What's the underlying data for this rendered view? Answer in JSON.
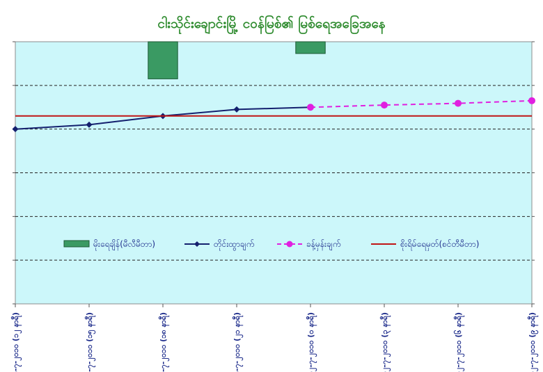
{
  "chart_data": {
    "title": "ငါးသိုင်းချောင်းမြို့ ငဝန်မြစ်၏ မြစ်ရေအခြေအနေ",
    "x_labels": [
      "၁၁-၇-၂၀၁၀ (၁၂ နာရီ)",
      "၁၁-၇-၂၀၁၀ (၁၅ နာရီ)",
      "၁၁-၇-၂၀၁၀ (၁၈ နာရီ)",
      "၁၁-၇-၂၀၁၀ (၂၁ နာရီ)",
      "၁၂-၇-၂၀၁၀ (၀ နာရီ)",
      "၁၂-၇-၂၀၁၀ (၃ နာရီ)",
      "၁၂-၇-၂၀၁၀ (၆ နာရီ)",
      "၁၂-၇-၂၀၁၀ (၉ နာရီ)"
    ],
    "y_range_relative": [
      0,
      6
    ],
    "grid": "horizontal dashed",
    "legend_position": "center",
    "series": [
      {
        "name": "မိုးရေချိန်(မီလီမီတာ)",
        "type": "bar",
        "axis": "secondary-inverted",
        "color": "#3a9a63",
        "values": [
          null,
          null,
          0.85,
          null,
          0.27,
          null,
          null,
          null
        ]
      },
      {
        "name": "တိုင်းထွာချက်",
        "type": "line",
        "color": "#14206e",
        "values": [
          4.0,
          4.1,
          4.3,
          4.45,
          4.5,
          null,
          null,
          null
        ]
      },
      {
        "name": "ခန့်မှန်းချက်",
        "type": "line-dashed",
        "color": "#e020e0",
        "values": [
          null,
          null,
          null,
          null,
          4.5,
          4.55,
          4.59,
          4.65
        ]
      },
      {
        "name": "စိုးရိမ်ရေမှတ်(စင်တီမီတာ)",
        "type": "line",
        "color": "#c01515",
        "values": [
          4.3,
          4.3,
          4.3,
          4.3,
          4.3,
          4.3,
          4.3,
          4.3
        ]
      }
    ]
  }
}
